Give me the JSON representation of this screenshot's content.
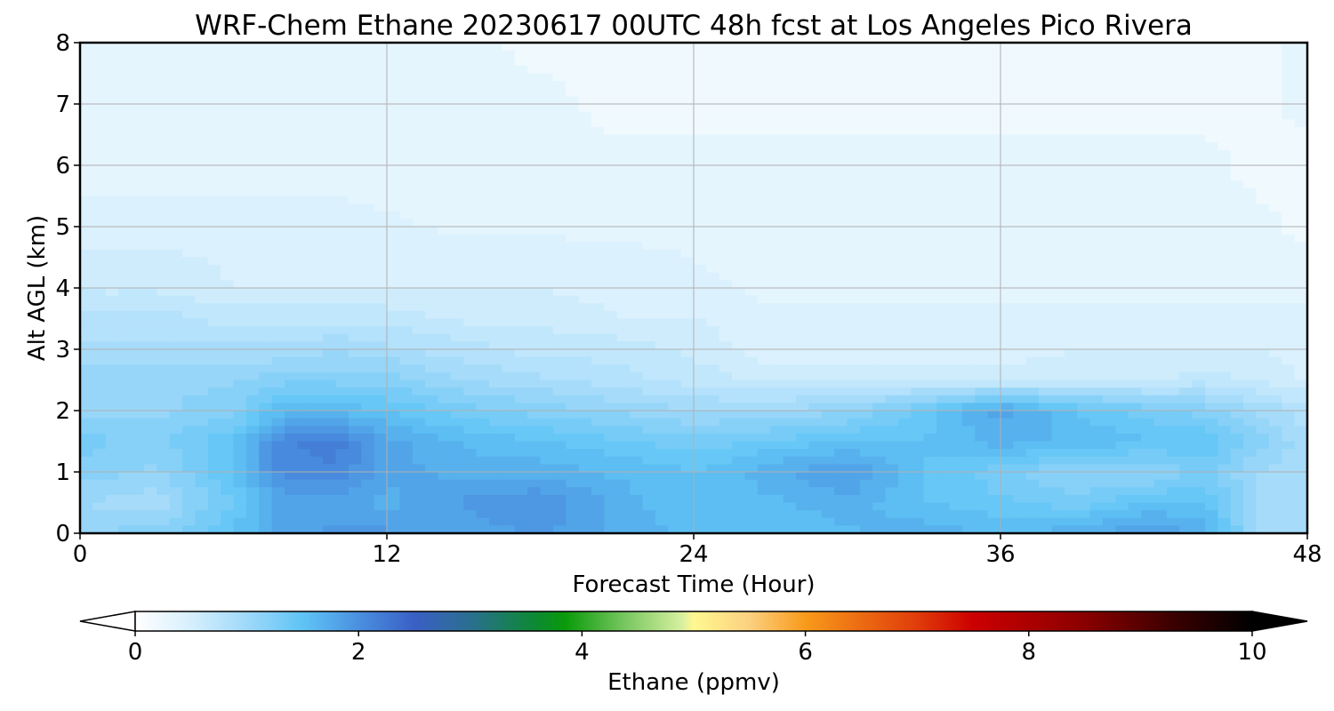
{
  "chart_data": {
    "type": "heatmap",
    "plot_style": "filled-contour time-height cross section",
    "title": "WRF-Chem Ethane  20230617 00UTC 48h fcst at Los Angeles Pico Rivera",
    "xlabel": "Forecast Time (Hour)",
    "ylabel": "Alt AGL (km)",
    "xlim": [
      0,
      48
    ],
    "ylim": [
      0,
      8
    ],
    "xticks": [
      0,
      12,
      24,
      36,
      48
    ],
    "yticks": [
      0,
      1,
      2,
      3,
      4,
      5,
      6,
      7,
      8
    ],
    "grid": true,
    "x": [
      0,
      3,
      6,
      8,
      10,
      12,
      15,
      18,
      21,
      24,
      27,
      30,
      33,
      36,
      39,
      42,
      44,
      46,
      48
    ],
    "y": [
      0,
      0.5,
      1,
      1.5,
      2,
      2.5,
      3,
      3.5,
      4,
      5,
      6,
      7,
      8
    ],
    "z": [
      [
        1.1,
        1.2,
        1.5,
        1.8,
        1.9,
        1.9,
        1.8,
        1.9,
        1.7,
        1.6,
        1.5,
        1.6,
        1.7,
        1.6,
        1.7,
        1.9,
        1.7,
        1.0,
        0.9
      ],
      [
        1.0,
        0.9,
        1.4,
        1.8,
        1.8,
        1.7,
        1.9,
        2.0,
        1.7,
        1.5,
        1.6,
        1.7,
        1.5,
        1.4,
        1.3,
        1.5,
        1.5,
        1.0,
        0.9
      ],
      [
        1.2,
        1.1,
        1.5,
        2.1,
        2.1,
        1.8,
        1.7,
        1.7,
        1.6,
        1.5,
        1.7,
        1.9,
        1.5,
        1.3,
        1.1,
        1.1,
        1.3,
        1.0,
        0.9
      ],
      [
        1.3,
        1.2,
        1.5,
        2.1,
        2.2,
        1.8,
        1.6,
        1.5,
        1.4,
        1.3,
        1.4,
        1.5,
        1.5,
        1.7,
        1.6,
        1.5,
        1.5,
        1.2,
        0.9
      ],
      [
        1.1,
        1.1,
        1.2,
        1.6,
        1.6,
        1.5,
        1.3,
        1.2,
        1.1,
        1.0,
        1.0,
        1.1,
        1.4,
        1.8,
        1.5,
        1.3,
        1.2,
        1.0,
        0.8
      ],
      [
        1.1,
        1.1,
        1.1,
        1.2,
        1.2,
        1.2,
        1.0,
        0.9,
        0.8,
        0.7,
        0.6,
        0.6,
        0.6,
        0.6,
        0.6,
        0.6,
        0.7,
        0.6,
        0.5
      ],
      [
        0.9,
        0.9,
        0.9,
        0.9,
        1.0,
        0.9,
        0.8,
        0.7,
        0.7,
        0.6,
        0.4,
        0.4,
        0.4,
        0.4,
        0.5,
        0.5,
        0.5,
        0.5,
        0.4
      ],
      [
        0.8,
        0.8,
        0.7,
        0.7,
        0.7,
        0.7,
        0.6,
        0.6,
        0.5,
        0.5,
        0.4,
        0.4,
        0.4,
        0.4,
        0.4,
        0.4,
        0.4,
        0.4,
        0.4
      ],
      [
        0.6,
        0.6,
        0.5,
        0.5,
        0.5,
        0.5,
        0.5,
        0.5,
        0.45,
        0.4,
        0.35,
        0.35,
        0.35,
        0.35,
        0.35,
        0.35,
        0.35,
        0.35,
        0.35
      ],
      [
        0.45,
        0.45,
        0.45,
        0.45,
        0.45,
        0.4,
        0.35,
        0.35,
        0.35,
        0.35,
        0.3,
        0.3,
        0.3,
        0.3,
        0.3,
        0.3,
        0.3,
        0.3,
        0.2
      ],
      [
        0.3,
        0.3,
        0.3,
        0.3,
        0.3,
        0.3,
        0.3,
        0.3,
        0.3,
        0.3,
        0.3,
        0.3,
        0.3,
        0.3,
        0.3,
        0.3,
        0.3,
        0.2,
        0.2
      ],
      [
        0.3,
        0.3,
        0.3,
        0.3,
        0.3,
        0.3,
        0.3,
        0.3,
        0.2,
        0.2,
        0.2,
        0.2,
        0.2,
        0.2,
        0.2,
        0.2,
        0.2,
        0.2,
        0.3
      ],
      [
        0.3,
        0.3,
        0.3,
        0.3,
        0.3,
        0.3,
        0.3,
        0.2,
        0.2,
        0.2,
        0.2,
        0.2,
        0.2,
        0.2,
        0.2,
        0.2,
        0.2,
        0.2,
        0.3
      ]
    ],
    "colorbar": {
      "label": "Ethane  (ppmv)",
      "min": 0,
      "max": 10,
      "ticks": [
        0,
        2,
        4,
        6,
        8,
        10
      ],
      "orientation": "horizontal",
      "extend": "both",
      "under_color": "#ffffff",
      "over_color": "#000000",
      "stops": [
        {
          "v": 0.0,
          "c": "#ffffff"
        },
        {
          "v": 0.5,
          "c": "#d6effd"
        },
        {
          "v": 1.0,
          "c": "#9fd9fa"
        },
        {
          "v": 1.5,
          "c": "#5fc4f5"
        },
        {
          "v": 2.0,
          "c": "#4a90e0"
        },
        {
          "v": 2.5,
          "c": "#3a5fc5"
        },
        {
          "v": 3.0,
          "c": "#2a6f90"
        },
        {
          "v": 3.6,
          "c": "#0c8a30"
        },
        {
          "v": 3.85,
          "c": "#0a9a0a"
        },
        {
          "v": 4.4,
          "c": "#7bc862"
        },
        {
          "v": 4.9,
          "c": "#d8f0a0"
        },
        {
          "v": 5.0,
          "c": "#fff890"
        },
        {
          "v": 5.5,
          "c": "#fcd080"
        },
        {
          "v": 6.0,
          "c": "#f89a1a"
        },
        {
          "v": 7.0,
          "c": "#e03c0a"
        },
        {
          "v": 7.5,
          "c": "#cc0000"
        },
        {
          "v": 8.5,
          "c": "#8a0000"
        },
        {
          "v": 9.3,
          "c": "#3a0000"
        },
        {
          "v": 10.0,
          "c": "#000000"
        }
      ]
    }
  }
}
